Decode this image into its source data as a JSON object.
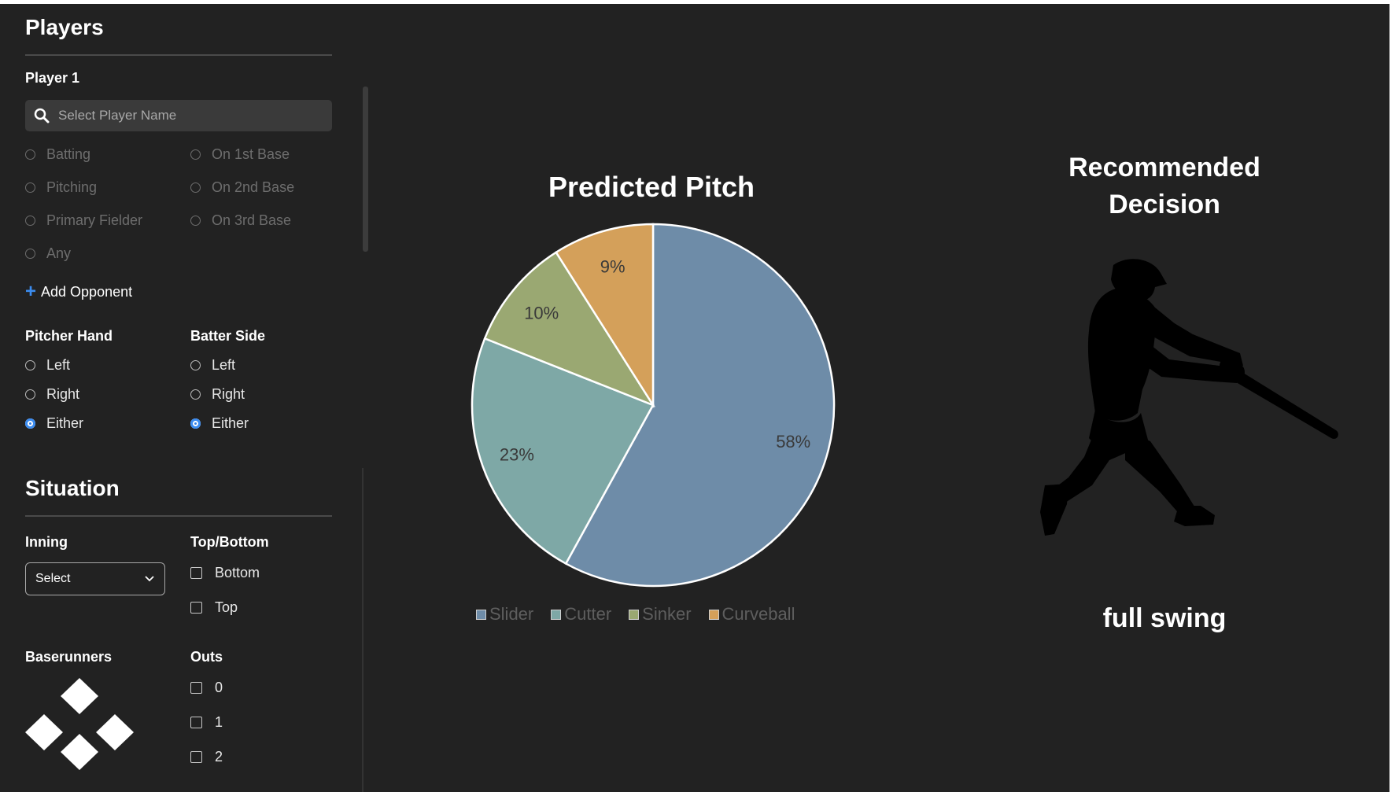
{
  "players": {
    "title": "Players",
    "player1_label": "Player 1",
    "search_placeholder": "Select Player Name",
    "roles": [
      "Batting",
      "On 1st Base",
      "Pitching",
      "On 2nd Base",
      "Primary Fielder",
      "On 3rd Base",
      "Any"
    ],
    "add_opponent": "Add Opponent",
    "pitcher_hand": {
      "label": "Pitcher Hand",
      "options": [
        "Left",
        "Right",
        "Either"
      ],
      "selected": "Either"
    },
    "batter_side": {
      "label": "Batter Side",
      "options": [
        "Left",
        "Right",
        "Either"
      ],
      "selected": "Either"
    }
  },
  "situation": {
    "title": "Situation",
    "inning": {
      "label": "Inning",
      "value": "Select"
    },
    "top_bottom": {
      "label": "Top/Bottom",
      "options": [
        "Bottom",
        "Top"
      ]
    },
    "baserunners": {
      "label": "Baserunners"
    },
    "outs": {
      "label": "Outs",
      "options": [
        "0",
        "1",
        "2"
      ]
    }
  },
  "chart_data": {
    "type": "pie",
    "title": "Predicted Pitch",
    "categories": [
      "Slider",
      "Cutter",
      "Sinker",
      "Curveball"
    ],
    "values": [
      58,
      23,
      10,
      9
    ],
    "labels": [
      "58%",
      "23%",
      "10%",
      "9%"
    ],
    "colors": [
      "#6e8ca8",
      "#7ea8a6",
      "#9aa872",
      "#d4a05a"
    ],
    "legend_position": "bottom"
  },
  "decision": {
    "title_line1": "Recommended",
    "title_line2": "Decision",
    "value": "full swing",
    "icon": "batter-silhouette-icon"
  }
}
